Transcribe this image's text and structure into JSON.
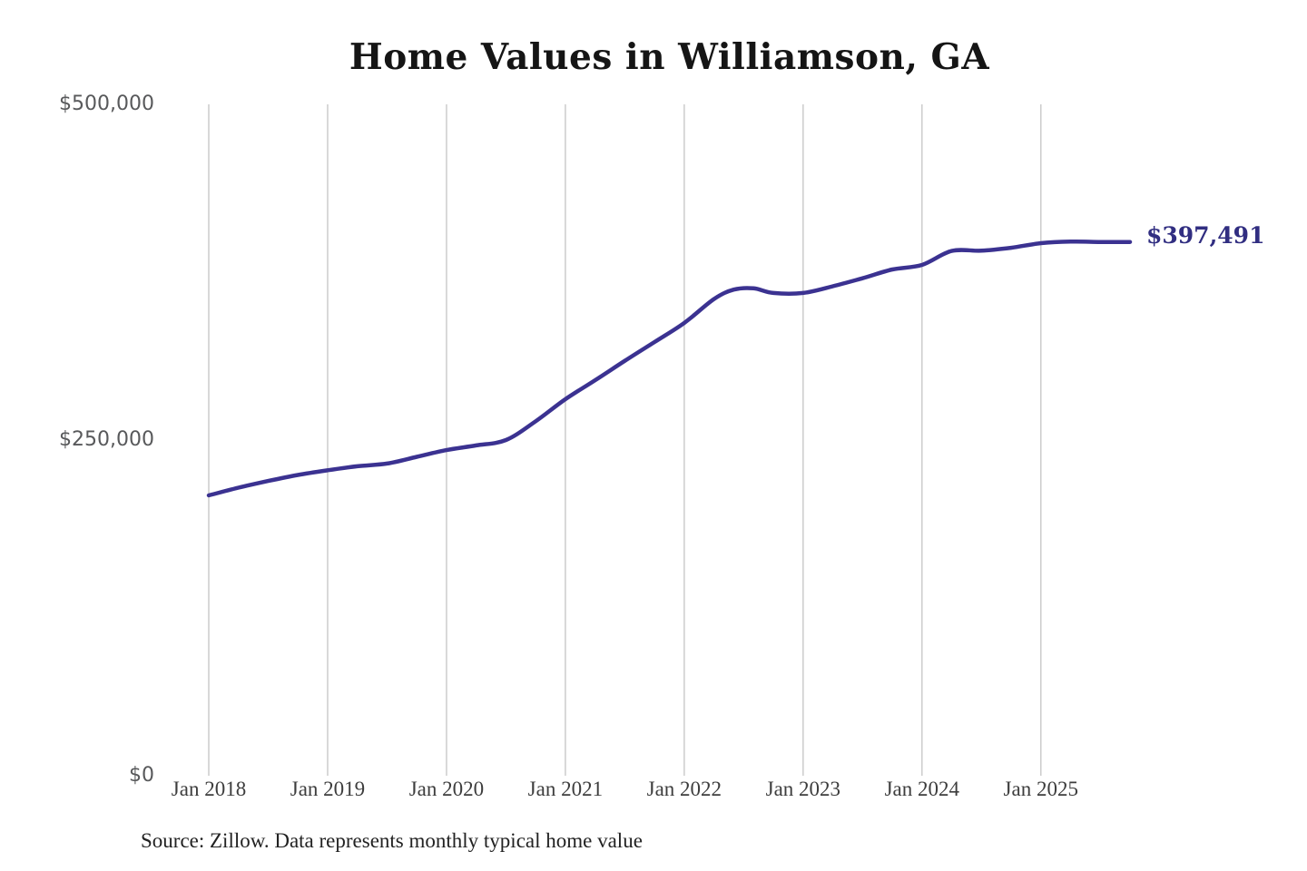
{
  "chart_data": {
    "type": "line",
    "title": "Home Values in Williamson, GA",
    "source_note": "Source: Zillow. Data represents monthly typical home value",
    "end_label": "$397,491",
    "end_value": 397491,
    "line_color": "#3b3291",
    "label_color": "#312e81",
    "grid_color": "#cccccc",
    "ylim": [
      0,
      500000
    ],
    "y_tick_labels": {
      "top": "$500,000",
      "mid": "$250,000",
      "bottom": "$0"
    },
    "x_tick_labels": [
      "Jan 2018",
      "Jan 2019",
      "Jan 2020",
      "Jan 2021",
      "Jan 2022",
      "Jan 2023",
      "Jan 2024",
      "Jan 2025"
    ],
    "x_start_month": "2018-01",
    "x_end_month": "2025-10",
    "grid_on": "vertical-only",
    "legend": "none",
    "points": [
      [
        "2018-01",
        208800
      ],
      [
        "2018-04",
        214500
      ],
      [
        "2018-07",
        219500
      ],
      [
        "2018-10",
        224000
      ],
      [
        "2019-01",
        227500
      ],
      [
        "2019-04",
        230500
      ],
      [
        "2019-07",
        232500
      ],
      [
        "2019-10",
        237500
      ],
      [
        "2020-01",
        242500
      ],
      [
        "2020-04",
        246000
      ],
      [
        "2020-07",
        250000
      ],
      [
        "2020-10",
        264000
      ],
      [
        "2021-01",
        280400
      ],
      [
        "2021-04",
        294500
      ],
      [
        "2021-07",
        309000
      ],
      [
        "2021-10",
        323000
      ],
      [
        "2022-01",
        337200
      ],
      [
        "2022-04",
        355000
      ],
      [
        "2022-06",
        362000
      ],
      [
        "2022-08",
        363000
      ],
      [
        "2022-10",
        359500
      ],
      [
        "2023-01",
        359500
      ],
      [
        "2023-04",
        364500
      ],
      [
        "2023-07",
        370500
      ],
      [
        "2023-10",
        377000
      ],
      [
        "2024-01",
        380400
      ],
      [
        "2024-04",
        390800
      ],
      [
        "2024-07",
        391000
      ],
      [
        "2024-10",
        393200
      ],
      [
        "2025-01",
        396600
      ],
      [
        "2025-04",
        397800
      ],
      [
        "2025-07",
        397500
      ],
      [
        "2025-10",
        397491
      ]
    ]
  }
}
